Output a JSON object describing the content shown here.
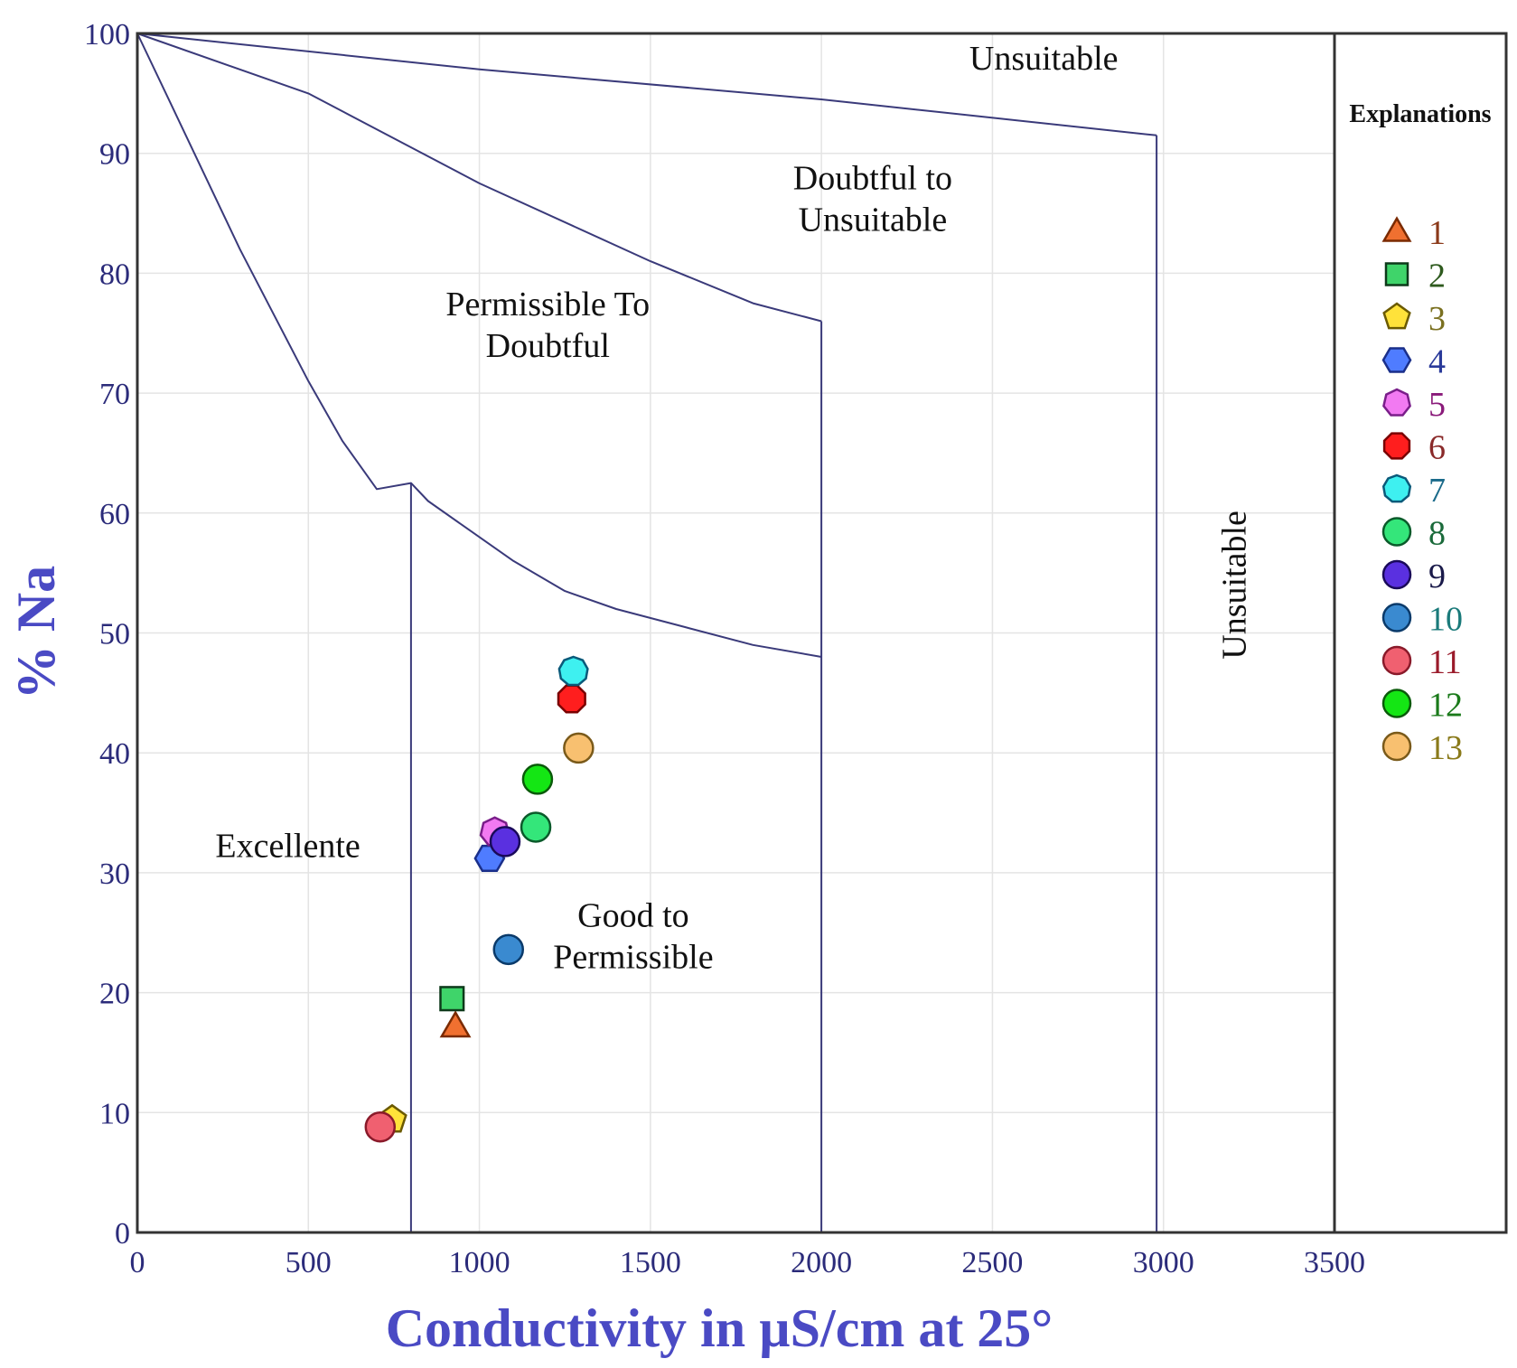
{
  "chart_data": {
    "type": "scatter",
    "title": "",
    "xlabel": "Conductivity in µS/cm at 25°",
    "ylabel": "% Na",
    "xlim": [
      0,
      3500
    ],
    "ylim": [
      0,
      100
    ],
    "x_ticks": [
      0,
      500,
      1000,
      1500,
      2000,
      2500,
      3000,
      3500
    ],
    "y_ticks": [
      0,
      10,
      20,
      30,
      40,
      50,
      60,
      70,
      80,
      90,
      100
    ],
    "grid": true,
    "legend_title": "Explanations",
    "legend_position": "right",
    "boundaries": [
      {
        "name": "excellent-upper",
        "points": [
          [
            0,
            100
          ],
          [
            100,
            94
          ],
          [
            200,
            88
          ],
          [
            300,
            82
          ],
          [
            400,
            76.5
          ],
          [
            500,
            71
          ],
          [
            600,
            66
          ],
          [
            700,
            62
          ],
          [
            800,
            62.5
          ],
          [
            850,
            61
          ],
          [
            950,
            59
          ],
          [
            1100,
            56
          ],
          [
            1250,
            53.5
          ],
          [
            1400,
            52
          ],
          [
            1600,
            50.5
          ],
          [
            1800,
            49
          ],
          [
            2000,
            48
          ]
        ]
      },
      {
        "name": "permissible-upper",
        "points": [
          [
            0,
            100
          ],
          [
            500,
            95
          ],
          [
            1000,
            87.5
          ],
          [
            1500,
            81
          ],
          [
            1800,
            77.5
          ],
          [
            2000,
            76
          ]
        ]
      },
      {
        "name": "doubtful-upper",
        "points": [
          [
            0,
            100
          ],
          [
            1000,
            97
          ],
          [
            2000,
            94.5
          ],
          [
            2980,
            91.5
          ]
        ]
      },
      {
        "name": "vertical-800",
        "points": [
          [
            800,
            62.5
          ],
          [
            800,
            0
          ]
        ]
      },
      {
        "name": "vertical-2000",
        "points": [
          [
            2000,
            76
          ],
          [
            2000,
            0
          ]
        ]
      },
      {
        "name": "vertical-2980",
        "points": [
          [
            2980,
            91.5
          ],
          [
            2980,
            0
          ]
        ]
      }
    ],
    "regions": [
      {
        "label": [
          "Unsuitable"
        ],
        "x": 2650,
        "y": 97,
        "rotate": 0
      },
      {
        "label": [
          "Doubtful to",
          "Unsuitable"
        ],
        "x": 2150,
        "y": 87,
        "rotate": 0
      },
      {
        "label": [
          "Permissible To",
          "Doubtful"
        ],
        "x": 1200,
        "y": 76.5,
        "rotate": 0
      },
      {
        "label": [
          "Excellente"
        ],
        "x": 440,
        "y": 31.3,
        "rotate": 0
      },
      {
        "label": [
          "Good to",
          "Permissible"
        ],
        "x": 1450,
        "y": 25.5,
        "rotate": 0
      },
      {
        "label": [
          "Unsuitable"
        ],
        "x": 3240,
        "y": 54,
        "rotate": -90
      }
    ],
    "series": [
      {
        "name": "1",
        "marker": "triangle",
        "fill": "#f07030",
        "stroke": "#7a2a00",
        "label_color": "#8b3a1a",
        "x": [
          930
        ],
        "y": [
          17.2
        ]
      },
      {
        "name": "2",
        "marker": "square",
        "fill": "#3fd46a",
        "stroke": "#0d3a1a",
        "label_color": "#2e5a1e",
        "x": [
          920
        ],
        "y": [
          19.5
        ]
      },
      {
        "name": "3",
        "marker": "pentagon",
        "fill": "#ffe23a",
        "stroke": "#6b5a00",
        "label_color": "#7a7020",
        "x": [
          745
        ],
        "y": [
          9.4
        ]
      },
      {
        "name": "4",
        "marker": "hexagon",
        "fill": "#4f7cff",
        "stroke": "#1a2f8a",
        "label_color": "#2a3a9a",
        "x": [
          1030
        ],
        "y": [
          31.2
        ]
      },
      {
        "name": "5",
        "marker": "heptagon",
        "fill": "#f27af2",
        "stroke": "#7a1e8a",
        "label_color": "#8a1a7a",
        "x": [
          1045
        ],
        "y": [
          33.4
        ]
      },
      {
        "name": "6",
        "marker": "octagon",
        "fill": "#ff1e1e",
        "stroke": "#7a0000",
        "label_color": "#8a2a2a",
        "x": [
          1270
        ],
        "y": [
          44.5
        ]
      },
      {
        "name": "7",
        "marker": "nonagon",
        "fill": "#3ef0f0",
        "stroke": "#0a5a7a",
        "label_color": "#1a6a8a",
        "x": [
          1275
        ],
        "y": [
          46.8
        ]
      },
      {
        "name": "8",
        "marker": "circle",
        "fill": "#34e67a",
        "stroke": "#0a5a2a",
        "label_color": "#1a6a3a",
        "x": [
          1165
        ],
        "y": [
          33.8
        ]
      },
      {
        "name": "9",
        "marker": "circle",
        "fill": "#5a30e0",
        "stroke": "#1a0a5a",
        "label_color": "#1a1a4a",
        "x": [
          1075
        ],
        "y": [
          32.6
        ]
      },
      {
        "name": "10",
        "marker": "circle",
        "fill": "#3a8ad0",
        "stroke": "#0a3a6a",
        "label_color": "#1a7a7a",
        "x": [
          1085
        ],
        "y": [
          23.6
        ]
      },
      {
        "name": "11",
        "marker": "circle",
        "fill": "#f06070",
        "stroke": "#8a1a2a",
        "label_color": "#9a1a2a",
        "x": [
          710
        ],
        "y": [
          8.8
        ]
      },
      {
        "name": "12",
        "marker": "circle",
        "fill": "#14e614",
        "stroke": "#0a5a0a",
        "label_color": "#1a7a1a",
        "x": [
          1170
        ],
        "y": [
          37.8
        ]
      },
      {
        "name": "13",
        "marker": "circle",
        "fill": "#f8c070",
        "stroke": "#7a5a1a",
        "label_color": "#8a7a1a",
        "x": [
          1290
        ],
        "y": [
          40.4
        ]
      }
    ]
  }
}
